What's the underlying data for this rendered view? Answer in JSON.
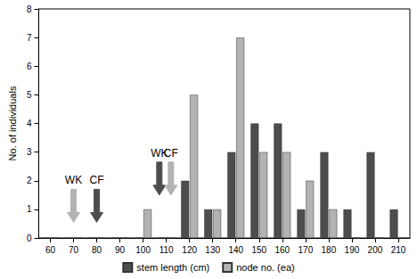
{
  "chart_data": {
    "type": "bar",
    "y_label": "No. of individuals",
    "x": [
      60,
      70,
      80,
      90,
      100,
      110,
      120,
      130,
      140,
      150,
      160,
      170,
      180,
      190,
      200,
      210
    ],
    "series": [
      {
        "name": "stem length (cm)",
        "color": "#4d4d4d",
        "values": [
          0,
          0,
          0,
          0,
          0,
          0,
          2,
          1,
          3,
          4,
          4,
          1,
          3,
          1,
          3,
          1
        ]
      },
      {
        "name": "node no. (ea)",
        "color": "#b3b3b3",
        "values": [
          0,
          0,
          0,
          0,
          1,
          0,
          5,
          1,
          7,
          3,
          3,
          2,
          1,
          0,
          0,
          0
        ]
      }
    ],
    "xlim": [
      55,
      215
    ],
    "xticks": [
      60,
      70,
      80,
      90,
      100,
      110,
      120,
      130,
      140,
      150,
      160,
      170,
      180,
      190,
      200,
      210
    ],
    "ylim": [
      0,
      8
    ],
    "yticks": [
      0,
      1,
      2,
      3,
      4,
      5,
      6,
      7,
      8
    ],
    "grid": false,
    "legend": "bottom",
    "annotations": [
      {
        "text": "WK",
        "x": 70,
        "y_start": 1.7,
        "y_end": 0.55,
        "color": "#b3b3b3"
      },
      {
        "text": "CF",
        "x": 80,
        "y_start": 1.7,
        "y_end": 0.55,
        "color": "#4d4d4d"
      },
      {
        "text": "WK",
        "x": 107,
        "y_start": 2.65,
        "y_end": 1.5,
        "color": "#4d4d4d"
      },
      {
        "text": "CF",
        "x": 112,
        "y_start": 2.65,
        "y_end": 1.5,
        "color": "#b3b3b3"
      }
    ]
  }
}
